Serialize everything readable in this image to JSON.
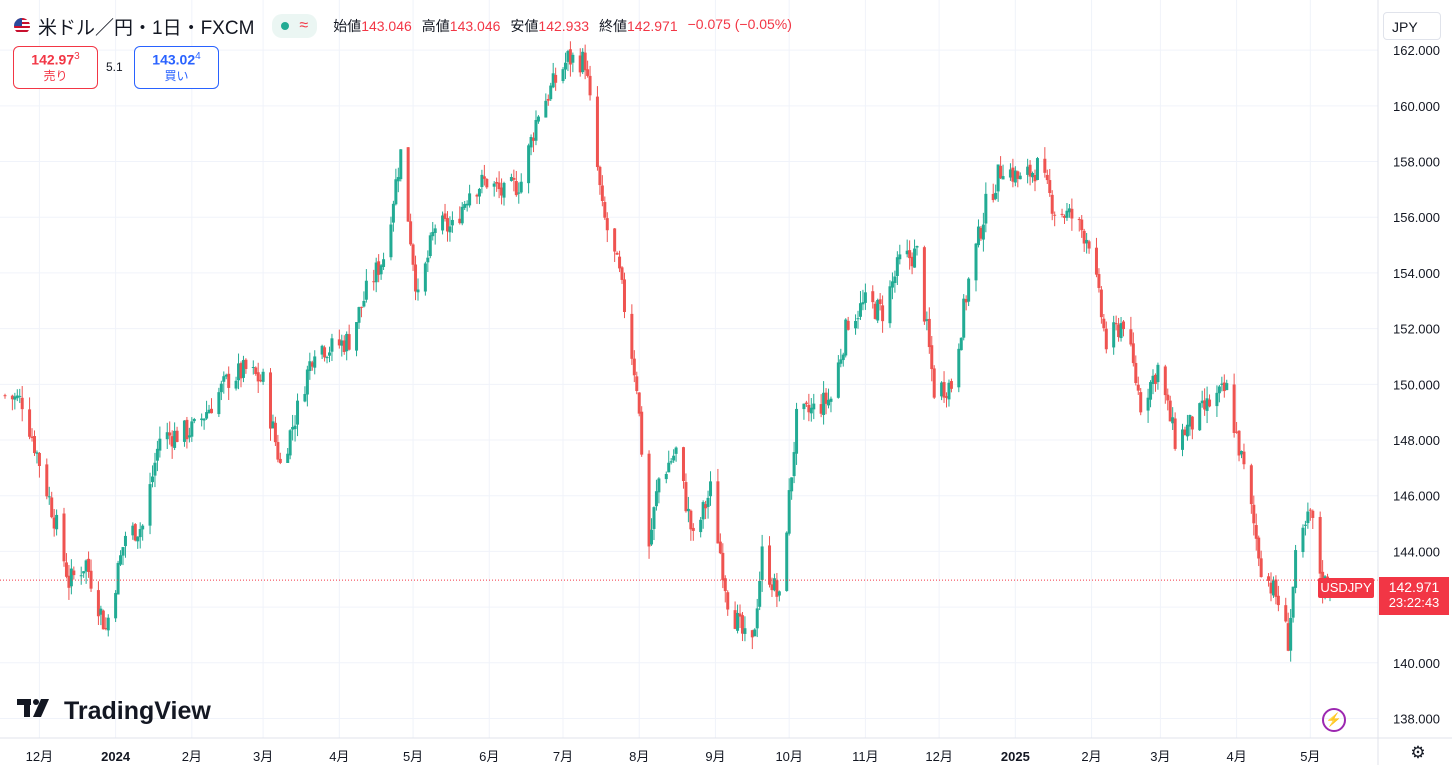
{
  "header": {
    "title": "米ドル／円・1日・FXCM",
    "status_icon": "≈",
    "ohlc": {
      "open_label": "始値",
      "open": "143.046",
      "high_label": "高値",
      "high": "143.046",
      "low_label": "安値",
      "low": "142.933",
      "close_label": "終値",
      "close": "142.971",
      "change": "−0.075 (−0.05%)"
    }
  },
  "trade": {
    "sell_price": "142.97",
    "sell_sup": "3",
    "sell_label": "売り",
    "spread": "5.1",
    "buy_price": "143.02",
    "buy_sup": "4",
    "buy_label": "買い"
  },
  "currency": "JPY",
  "logo": {
    "text": "TradingView"
  },
  "last_price": {
    "symbol": "USDJPY",
    "price": "142.971",
    "countdown": "23:22:43"
  },
  "colors": {
    "up": "#22ab94",
    "down": "#ef5350",
    "accent": "#f23645",
    "grid": "#f0f3fa"
  },
  "chart_data": {
    "type": "candlestick",
    "title": "米ドル／円・1日・FXCM",
    "ylim": [
      137.3,
      163.8
    ],
    "y_ticks": [
      "162.000",
      "160.000",
      "158.000",
      "156.000",
      "154.000",
      "152.000",
      "150.000",
      "148.000",
      "146.000",
      "144.000",
      "142.000",
      "140.000",
      "138.000"
    ],
    "y_tick_values": [
      162,
      160,
      158,
      156,
      154,
      152,
      150,
      148,
      146,
      144,
      142,
      140,
      138
    ],
    "x_ticks": [
      "12月",
      "2024",
      "2月",
      "3月",
      "4月",
      "5月",
      "6月",
      "7月",
      "8月",
      "9月",
      "10月",
      "11月",
      "12月",
      "2025",
      "2月",
      "3月",
      "4月",
      "5月"
    ],
    "x_tick_dates": [
      "2023-12-01",
      "2024-01-01",
      "2024-02-01",
      "2024-03-01",
      "2024-04-01",
      "2024-05-01",
      "2024-06-01",
      "2024-07-01",
      "2024-08-01",
      "2024-09-01",
      "2024-10-01",
      "2024-11-01",
      "2024-12-01",
      "2025-01-01",
      "2025-02-01",
      "2025-03-01",
      "2025-04-01",
      "2025-05-01"
    ],
    "x_start": "2023-11-17",
    "x_end": "2025-05-09",
    "bold_ticks": [
      "2024",
      "2025"
    ],
    "last_price": 142.971,
    "close_path": [
      [
        "2023-11-17",
        149.6
      ],
      [
        "2023-11-24",
        149.4
      ],
      [
        "2023-12-01",
        147.2
      ],
      [
        "2023-12-08",
        144.9
      ],
      [
        "2023-12-13",
        142.9
      ],
      [
        "2023-12-20",
        143.6
      ],
      [
        "2023-12-28",
        141.2
      ],
      [
        "2024-01-05",
        144.6
      ],
      [
        "2024-01-12",
        144.9
      ],
      [
        "2024-01-19",
        148.1
      ],
      [
        "2024-01-26",
        148.2
      ],
      [
        "2024-02-02",
        148.4
      ],
      [
        "2024-02-09",
        149.3
      ],
      [
        "2024-02-16",
        150.2
      ],
      [
        "2024-02-23",
        150.5
      ],
      [
        "2024-03-01",
        150.1
      ],
      [
        "2024-03-08",
        147.1
      ],
      [
        "2024-03-15",
        149.1
      ],
      [
        "2024-03-22",
        151.4
      ],
      [
        "2024-03-29",
        151.3
      ],
      [
        "2024-04-05",
        151.6
      ],
      [
        "2024-04-12",
        153.3
      ],
      [
        "2024-04-19",
        154.6
      ],
      [
        "2024-04-26",
        158.3
      ],
      [
        "2024-05-03",
        153.0
      ],
      [
        "2024-05-10",
        155.7
      ],
      [
        "2024-05-17",
        155.6
      ],
      [
        "2024-05-24",
        157.0
      ],
      [
        "2024-05-31",
        157.3
      ],
      [
        "2024-06-07",
        156.8
      ],
      [
        "2024-06-14",
        157.3
      ],
      [
        "2024-06-21",
        159.8
      ],
      [
        "2024-06-28",
        160.9
      ],
      [
        "2024-07-03",
        161.7
      ],
      [
        "2024-07-10",
        161.6
      ],
      [
        "2024-07-17",
        156.2
      ],
      [
        "2024-07-24",
        153.9
      ],
      [
        "2024-07-31",
        150.0
      ],
      [
        "2024-08-05",
        144.2
      ],
      [
        "2024-08-09",
        146.6
      ],
      [
        "2024-08-16",
        147.6
      ],
      [
        "2024-08-23",
        144.4
      ],
      [
        "2024-08-30",
        146.2
      ],
      [
        "2024-09-06",
        142.3
      ],
      [
        "2024-09-13",
        140.8
      ],
      [
        "2024-09-16",
        140.6
      ],
      [
        "2024-09-20",
        143.9
      ],
      [
        "2024-09-27",
        142.2
      ],
      [
        "2024-10-04",
        148.7
      ],
      [
        "2024-10-11",
        149.1
      ],
      [
        "2024-10-18",
        149.5
      ],
      [
        "2024-10-25",
        152.3
      ],
      [
        "2024-11-01",
        152.9
      ],
      [
        "2024-11-08",
        152.6
      ],
      [
        "2024-11-15",
        154.4
      ],
      [
        "2024-11-22",
        154.7
      ],
      [
        "2024-11-29",
        149.8
      ],
      [
        "2024-12-06",
        150.0
      ],
      [
        "2024-12-13",
        153.7
      ],
      [
        "2024-12-20",
        156.4
      ],
      [
        "2024-12-27",
        157.9
      ],
      [
        "2025-01-03",
        157.3
      ],
      [
        "2025-01-10",
        157.8
      ],
      [
        "2025-01-17",
        156.3
      ],
      [
        "2025-01-24",
        156.0
      ],
      [
        "2025-01-31",
        155.2
      ],
      [
        "2025-02-07",
        151.4
      ],
      [
        "2025-02-14",
        152.3
      ],
      [
        "2025-02-21",
        149.3
      ],
      [
        "2025-02-28",
        150.6
      ],
      [
        "2025-03-07",
        148.0
      ],
      [
        "2025-03-14",
        148.6
      ],
      [
        "2025-03-21",
        149.3
      ],
      [
        "2025-03-28",
        149.8
      ],
      [
        "2025-04-04",
        146.9
      ],
      [
        "2025-04-11",
        143.5
      ],
      [
        "2025-04-18",
        142.2
      ],
      [
        "2025-04-22",
        140.8
      ],
      [
        "2025-04-25",
        143.6
      ],
      [
        "2025-05-01",
        145.4
      ],
      [
        "2025-05-06",
        142.8
      ],
      [
        "2025-05-09",
        142.971
      ]
    ]
  }
}
